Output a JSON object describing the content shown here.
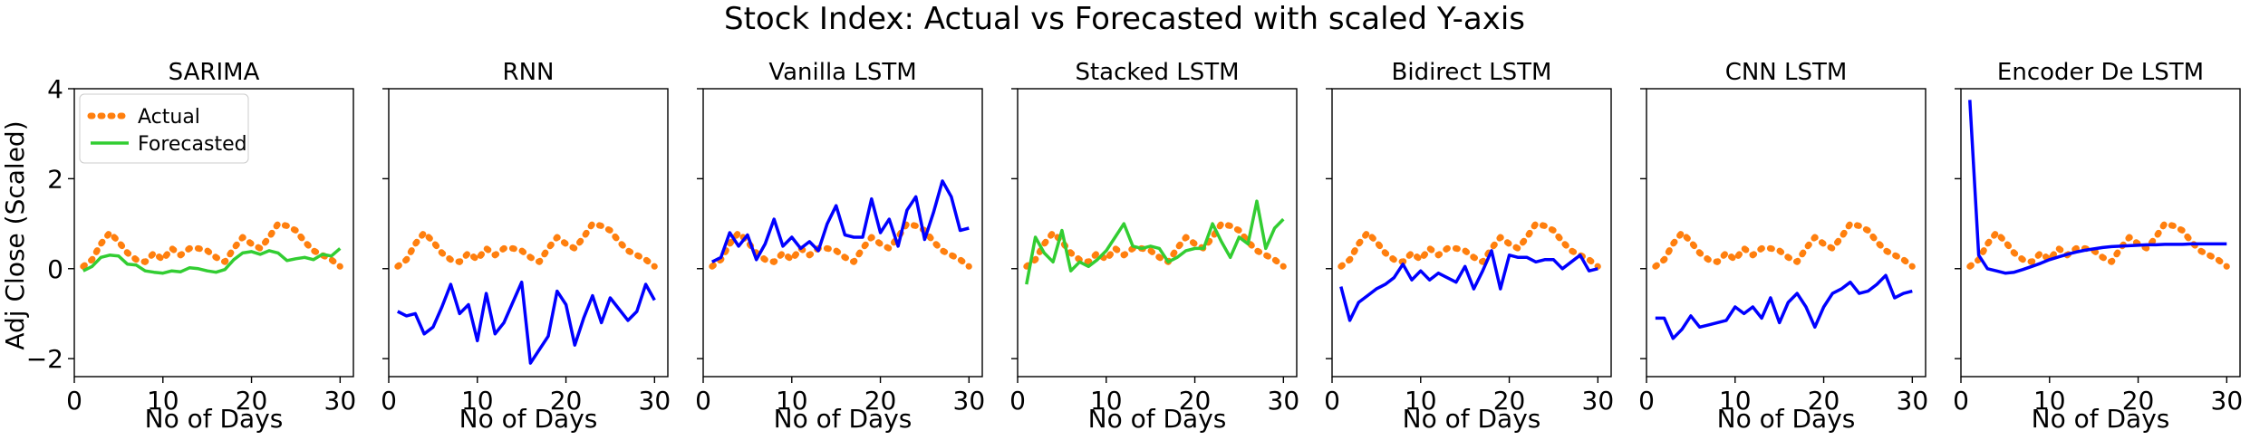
{
  "figure": {
    "title": "Stock Index: Actual vs Forecasted with scaled Y-axis"
  },
  "colors": {
    "actual": "#ff7f0e",
    "forecast_green": "#32cd32",
    "forecast_blue": "#0000ff",
    "axes": "#000000"
  },
  "axes_common": {
    "xlabel": "No of Days",
    "ylabel": "Adj Close (Scaled)",
    "xlim": [
      0,
      31.5
    ],
    "ylim": [
      -2.4,
      4.0
    ],
    "xticks": [
      0,
      10,
      20,
      30
    ],
    "yticks": [
      -2,
      0,
      2,
      4
    ]
  },
  "legend": {
    "position": "upper-left",
    "entries": [
      "Actual",
      "Forecasted"
    ]
  },
  "chart_data": [
    {
      "type": "line",
      "title": "SARIMA",
      "forecast_color": "green",
      "x": [
        1,
        2,
        3,
        4,
        5,
        6,
        7,
        8,
        9,
        10,
        11,
        12,
        13,
        14,
        15,
        16,
        17,
        18,
        19,
        20,
        21,
        22,
        23,
        24,
        25,
        26,
        27,
        28,
        29,
        30
      ],
      "series": [
        {
          "name": "Actual",
          "values": [
            0.05,
            0.2,
            0.55,
            0.8,
            0.6,
            0.35,
            0.2,
            0.15,
            0.35,
            0.2,
            0.45,
            0.3,
            0.45,
            0.45,
            0.4,
            0.25,
            0.15,
            0.45,
            0.7,
            0.55,
            0.45,
            0.7,
            1.0,
            0.95,
            0.85,
            0.6,
            0.4,
            0.3,
            0.2,
            0.05
          ]
        },
        {
          "name": "Forecasted",
          "values": [
            -0.05,
            0.05,
            0.25,
            0.3,
            0.28,
            0.1,
            0.08,
            -0.05,
            -0.08,
            -0.1,
            -0.05,
            -0.07,
            0.02,
            0.0,
            -0.05,
            -0.08,
            -0.02,
            0.2,
            0.35,
            0.38,
            0.32,
            0.4,
            0.35,
            0.18,
            0.22,
            0.25,
            0.2,
            0.32,
            0.28,
            0.45
          ]
        }
      ]
    },
    {
      "type": "line",
      "title": "RNN",
      "forecast_color": "blue",
      "x": [
        1,
        2,
        3,
        4,
        5,
        6,
        7,
        8,
        9,
        10,
        11,
        12,
        13,
        14,
        15,
        16,
        17,
        18,
        19,
        20,
        21,
        22,
        23,
        24,
        25,
        26,
        27,
        28,
        29,
        30
      ],
      "series": [
        {
          "name": "Actual",
          "values": [
            0.05,
            0.2,
            0.55,
            0.8,
            0.6,
            0.35,
            0.2,
            0.15,
            0.35,
            0.2,
            0.45,
            0.3,
            0.45,
            0.45,
            0.4,
            0.25,
            0.15,
            0.45,
            0.7,
            0.55,
            0.45,
            0.7,
            1.0,
            0.95,
            0.85,
            0.6,
            0.4,
            0.3,
            0.2,
            0.05
          ]
        },
        {
          "name": "Forecasted",
          "values": [
            -0.95,
            -1.05,
            -1.0,
            -1.45,
            -1.3,
            -0.85,
            -0.35,
            -1.0,
            -0.8,
            -1.6,
            -0.55,
            -1.45,
            -1.2,
            -0.75,
            -0.3,
            -2.1,
            -1.8,
            -1.5,
            -0.5,
            -0.8,
            -1.7,
            -1.1,
            -0.6,
            -1.2,
            -0.65,
            -0.9,
            -1.15,
            -0.95,
            -0.35,
            -0.7
          ]
        }
      ]
    },
    {
      "type": "line",
      "title": "Vanilla LSTM",
      "forecast_color": "blue",
      "x": [
        1,
        2,
        3,
        4,
        5,
        6,
        7,
        8,
        9,
        10,
        11,
        12,
        13,
        14,
        15,
        16,
        17,
        18,
        19,
        20,
        21,
        22,
        23,
        24,
        25,
        26,
        27,
        28,
        29,
        30
      ],
      "series": [
        {
          "name": "Actual",
          "values": [
            0.05,
            0.2,
            0.55,
            0.8,
            0.6,
            0.35,
            0.2,
            0.15,
            0.35,
            0.2,
            0.45,
            0.3,
            0.45,
            0.45,
            0.4,
            0.25,
            0.15,
            0.45,
            0.7,
            0.55,
            0.45,
            0.7,
            1.0,
            0.95,
            0.85,
            0.6,
            0.4,
            0.3,
            0.2,
            0.05
          ]
        },
        {
          "name": "Forecasted",
          "values": [
            0.15,
            0.25,
            0.8,
            0.5,
            0.75,
            0.2,
            0.55,
            1.1,
            0.5,
            0.7,
            0.45,
            0.6,
            0.4,
            1.0,
            1.4,
            0.75,
            0.7,
            0.7,
            1.55,
            0.8,
            1.1,
            0.5,
            1.3,
            1.6,
            0.65,
            1.25,
            1.95,
            1.6,
            0.85,
            0.9
          ]
        }
      ]
    },
    {
      "type": "line",
      "title": "Stacked LSTM",
      "forecast_color": "green",
      "x": [
        1,
        2,
        3,
        4,
        5,
        6,
        7,
        8,
        9,
        10,
        11,
        12,
        13,
        14,
        15,
        16,
        17,
        18,
        19,
        20,
        21,
        22,
        23,
        24,
        25,
        26,
        27,
        28,
        29,
        30
      ],
      "series": [
        {
          "name": "Actual",
          "values": [
            0.05,
            0.2,
            0.55,
            0.8,
            0.6,
            0.35,
            0.2,
            0.15,
            0.35,
            0.2,
            0.45,
            0.3,
            0.45,
            0.45,
            0.4,
            0.25,
            0.15,
            0.45,
            0.7,
            0.55,
            0.45,
            0.7,
            1.0,
            0.95,
            0.85,
            0.6,
            0.4,
            0.3,
            0.2,
            0.05
          ]
        },
        {
          "name": "Forecasted",
          "values": [
            -0.35,
            0.7,
            0.35,
            0.15,
            0.85,
            -0.05,
            0.15,
            0.05,
            0.2,
            0.4,
            0.7,
            1.0,
            0.5,
            0.45,
            0.5,
            0.45,
            0.15,
            0.25,
            0.4,
            0.45,
            0.45,
            1.0,
            0.6,
            0.25,
            0.7,
            0.55,
            1.5,
            0.45,
            0.9,
            1.1
          ]
        }
      ]
    },
    {
      "type": "line",
      "title": "Bidirect LSTM",
      "forecast_color": "blue",
      "x": [
        1,
        2,
        3,
        4,
        5,
        6,
        7,
        8,
        9,
        10,
        11,
        12,
        13,
        14,
        15,
        16,
        17,
        18,
        19,
        20,
        21,
        22,
        23,
        24,
        25,
        26,
        27,
        28,
        29,
        30
      ],
      "series": [
        {
          "name": "Actual",
          "values": [
            0.05,
            0.2,
            0.55,
            0.8,
            0.6,
            0.35,
            0.2,
            0.15,
            0.35,
            0.2,
            0.45,
            0.3,
            0.45,
            0.45,
            0.4,
            0.25,
            0.15,
            0.45,
            0.7,
            0.55,
            0.45,
            0.7,
            1.0,
            0.95,
            0.85,
            0.6,
            0.4,
            0.3,
            0.2,
            0.05
          ]
        },
        {
          "name": "Forecasted",
          "values": [
            -0.4,
            -1.15,
            -0.75,
            -0.6,
            -0.45,
            -0.35,
            -0.2,
            0.1,
            -0.25,
            -0.05,
            -0.25,
            -0.1,
            -0.2,
            -0.3,
            0.05,
            -0.45,
            -0.05,
            0.4,
            -0.45,
            0.3,
            0.25,
            0.25,
            0.15,
            0.2,
            0.2,
            0.0,
            0.15,
            0.3,
            -0.05,
            0.0
          ]
        }
      ]
    },
    {
      "type": "line",
      "title": "CNN LSTM",
      "forecast_color": "blue",
      "x": [
        1,
        2,
        3,
        4,
        5,
        6,
        7,
        8,
        9,
        10,
        11,
        12,
        13,
        14,
        15,
        16,
        17,
        18,
        19,
        20,
        21,
        22,
        23,
        24,
        25,
        26,
        27,
        28,
        29,
        30
      ],
      "series": [
        {
          "name": "Actual",
          "values": [
            0.05,
            0.2,
            0.55,
            0.8,
            0.6,
            0.35,
            0.2,
            0.15,
            0.35,
            0.2,
            0.45,
            0.3,
            0.45,
            0.45,
            0.4,
            0.25,
            0.15,
            0.45,
            0.7,
            0.55,
            0.45,
            0.7,
            1.0,
            0.95,
            0.85,
            0.6,
            0.4,
            0.3,
            0.2,
            0.05
          ]
        },
        {
          "name": "Forecasted",
          "values": [
            -1.1,
            -1.1,
            -1.55,
            -1.35,
            -1.05,
            -1.3,
            -1.25,
            -1.2,
            -1.15,
            -0.85,
            -1.0,
            -0.85,
            -1.1,
            -0.65,
            -1.2,
            -0.75,
            -0.55,
            -0.85,
            -1.3,
            -0.85,
            -0.55,
            -0.45,
            -0.3,
            -0.55,
            -0.5,
            -0.35,
            -0.15,
            -0.65,
            -0.55,
            -0.5
          ]
        }
      ]
    },
    {
      "type": "line",
      "title": "Encoder De LSTM",
      "forecast_color": "blue",
      "x": [
        1,
        2,
        3,
        4,
        5,
        6,
        7,
        8,
        9,
        10,
        11,
        12,
        13,
        14,
        15,
        16,
        17,
        18,
        19,
        20,
        21,
        22,
        23,
        24,
        25,
        26,
        27,
        28,
        29,
        30
      ],
      "series": [
        {
          "name": "Actual",
          "values": [
            0.05,
            0.2,
            0.55,
            0.8,
            0.6,
            0.35,
            0.2,
            0.15,
            0.35,
            0.2,
            0.45,
            0.3,
            0.45,
            0.45,
            0.4,
            0.25,
            0.15,
            0.45,
            0.7,
            0.55,
            0.45,
            0.7,
            1.0,
            0.95,
            0.85,
            0.6,
            0.4,
            0.3,
            0.2,
            0.05
          ]
        },
        {
          "name": "Forecasted",
          "values": [
            3.75,
            0.3,
            0.0,
            -0.05,
            -0.1,
            -0.08,
            -0.02,
            0.05,
            0.12,
            0.2,
            0.26,
            0.32,
            0.37,
            0.41,
            0.44,
            0.47,
            0.49,
            0.5,
            0.51,
            0.52,
            0.53,
            0.53,
            0.54,
            0.54,
            0.54,
            0.55,
            0.55,
            0.55,
            0.55,
            0.55
          ]
        }
      ]
    }
  ]
}
